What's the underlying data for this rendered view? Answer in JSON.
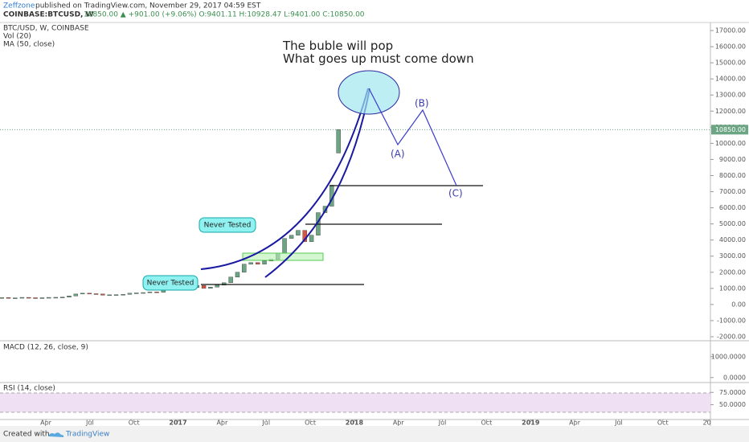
{
  "header": {
    "author": "Zeffzone",
    "published": "published on TradingView.com, November 29, 2017 04:59 EST",
    "symbol": "COINBASE:BTCUSD, W",
    "quote": "10850.00 ▲ +901.00 (+9.06%) O:9401.11 H:10928.47 L:9401.00 C:10850.00"
  },
  "footer": {
    "created": "Created with",
    "brand": "TradingView"
  },
  "chart_data": {
    "type": "candlestick",
    "legend": [
      "BTC/USD, W, COINBASE",
      "Vol (20)",
      "MA (50, close)"
    ],
    "annotations": {
      "title": "The buble will pop",
      "subtitle": "What goes up must come down",
      "a": "(A)",
      "b": "(B)",
      "c": "(C)",
      "never_tested_1": "Never Tested",
      "never_tested_2": "Never Tested"
    },
    "x": [
      2016.0,
      2016.038,
      2016.076,
      2016.115,
      2016.153,
      2016.191,
      2016.229,
      2016.267,
      2016.306,
      2016.344,
      2016.382,
      2016.42,
      2016.458,
      2016.497,
      2016.535,
      2016.573,
      2016.611,
      2016.649,
      2016.688,
      2016.726,
      2016.764,
      2016.802,
      2016.84,
      2016.879,
      2016.917,
      2016.955,
      2016.993,
      2017.031,
      2017.07,
      2017.108,
      2017.146,
      2017.184,
      2017.222,
      2017.261,
      2017.299,
      2017.337,
      2017.375,
      2017.413,
      2017.452,
      2017.49,
      2017.528,
      2017.566,
      2017.604,
      2017.643,
      2017.681,
      2017.719,
      2017.757,
      2017.795,
      2017.834,
      2017.872,
      2017.91
    ],
    "open": [
      420,
      430,
      380,
      410,
      440,
      420,
      415,
      420,
      440,
      445,
      455,
      530,
      650,
      700,
      670,
      650,
      580,
      600,
      610,
      630,
      700,
      720,
      740,
      780,
      760,
      900,
      960,
      1000,
      1020,
      1050,
      1180,
      1000,
      1080,
      1200,
      1350,
      1700,
      2000,
      2500,
      2600,
      2500,
      2700,
      2800,
      3200,
      4100,
      4300,
      4600,
      3900,
      4300,
      5700,
      6100,
      9401.11
    ],
    "close": [
      430,
      380,
      410,
      440,
      420,
      415,
      420,
      440,
      445,
      455,
      530,
      650,
      700,
      670,
      650,
      580,
      600,
      610,
      630,
      700,
      720,
      740,
      780,
      760,
      900,
      960,
      1000,
      1020,
      1050,
      1180,
      1000,
      1080,
      1200,
      1350,
      1700,
      2000,
      2500,
      2600,
      2500,
      2700,
      2800,
      3200,
      4100,
      4300,
      4600,
      3900,
      4300,
      5700,
      6100,
      7400,
      10850
    ],
    "up_color": "#6ba583",
    "down_color": "#d75442",
    "last_price": {
      "value": 10850,
      "label": "10850.00"
    },
    "xlim": [
      2015.99,
      2020.02
    ],
    "xticks": [
      {
        "value": 2016.25,
        "label": "Apr"
      },
      {
        "value": 2016.5,
        "label": "Jul"
      },
      {
        "value": 2016.75,
        "label": "Oct"
      },
      2017,
      {
        "value": 2017.25,
        "label": "Apr"
      },
      {
        "value": 2017.5,
        "label": "Jul"
      },
      {
        "value": 2017.75,
        "label": "Oct"
      },
      2018,
      {
        "value": 2018.25,
        "label": "Apr"
      },
      {
        "value": 2018.5,
        "label": "Jul"
      },
      {
        "value": 2018.75,
        "label": "Oct"
      },
      2019,
      {
        "value": 2019.25,
        "label": "Apr"
      },
      {
        "value": 2019.5,
        "label": "Jul"
      },
      {
        "value": 2019.75,
        "label": "Oct"
      },
      {
        "value": 2020,
        "label": "20"
      }
    ],
    "ylim": [
      -2250,
      17500
    ],
    "yticks": [
      {
        "value": 17000,
        "label": "17000.00"
      },
      {
        "value": 16000,
        "label": "16000.00"
      },
      {
        "value": 15000,
        "label": "15000.00"
      },
      {
        "value": 14000,
        "label": "14000.00"
      },
      {
        "value": 13000,
        "label": "13000.00"
      },
      {
        "value": 12000,
        "label": "12000.00"
      },
      {
        "value": 11000,
        "label": "11000.00"
      },
      {
        "value": 10000,
        "label": "10000.00"
      },
      {
        "value": 9000,
        "label": "9000.00"
      },
      {
        "value": 8000,
        "label": "8000.00"
      },
      {
        "value": 7000,
        "label": "7000.00"
      },
      {
        "value": 6000,
        "label": "6000.00"
      },
      {
        "value": 5000,
        "label": "5000.00"
      },
      {
        "value": 4000,
        "label": "4000.00"
      },
      {
        "value": 3000,
        "label": "3000.00"
      },
      {
        "value": 2000,
        "label": "2000.00"
      },
      {
        "value": 1000,
        "label": "1000.00"
      },
      {
        "value": 0,
        "label": "0.00"
      },
      {
        "value": -1000,
        "label": "-1000.00"
      },
      {
        "value": -2000,
        "label": "-2000.00"
      }
    ],
    "macd": {
      "name": "MACD (12, 26, close, 9)",
      "ylim": [
        -240,
        1760
      ],
      "yticks": [
        {
          "value": 1000,
          "label": "1000.0000"
        },
        {
          "value": 0,
          "label": "0.0000"
        }
      ]
    },
    "rsi": {
      "name": "RSI (14, close)",
      "ylim": [
        20,
        95
      ],
      "yticks": [
        {
          "value": 75,
          "label": "75.0000"
        },
        {
          "value": 50,
          "label": "50.0000"
        }
      ]
    }
  }
}
